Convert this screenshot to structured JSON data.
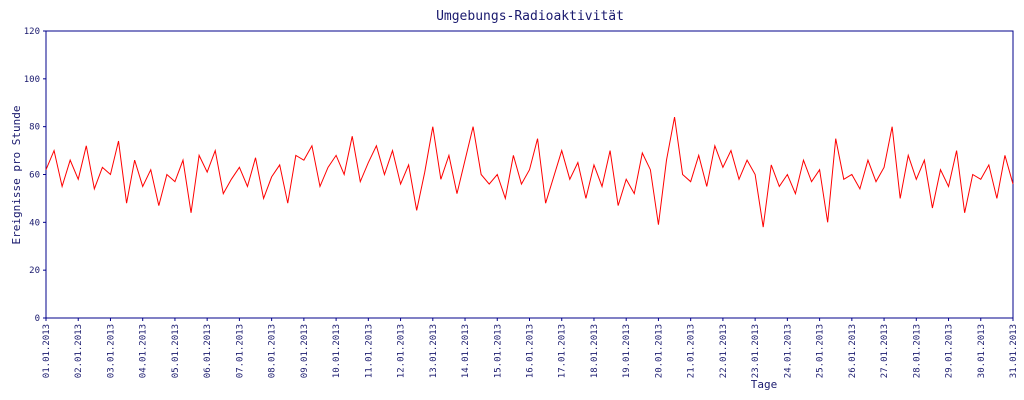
{
  "chart_data": {
    "type": "line",
    "title": "Umgebungs-Radioaktivität",
    "x_label": "Tage",
    "y_label": "Ereignisse pro Stunde",
    "x": [
      0,
      0.25,
      0.5,
      0.75,
      1,
      1.25,
      1.5,
      1.75,
      2,
      2.25,
      2.5,
      2.75,
      3,
      3.25,
      3.5,
      3.75,
      4,
      4.25,
      4.5,
      4.75,
      5,
      5.25,
      5.5,
      5.75,
      6,
      6.25,
      6.5,
      6.75,
      7,
      7.25,
      7.5,
      7.75,
      8,
      8.25,
      8.5,
      8.75,
      9,
      9.25,
      9.5,
      9.75,
      10,
      10.25,
      10.5,
      10.75,
      11,
      11.25,
      11.5,
      11.75,
      12,
      12.25,
      12.5,
      12.75,
      13,
      13.25,
      13.5,
      13.75,
      14,
      14.25,
      14.5,
      14.75,
      15,
      15.25,
      15.5,
      15.75,
      16,
      16.25,
      16.5,
      16.75,
      17,
      17.25,
      17.5,
      17.75,
      18,
      18.25,
      18.5,
      18.75,
      19,
      19.25,
      19.5,
      19.75,
      20,
      20.25,
      20.5,
      20.75,
      21,
      21.25,
      21.5,
      21.75,
      22,
      22.25,
      22.5,
      22.75,
      23,
      23.25,
      23.5,
      23.75,
      24,
      24.25,
      24.5,
      24.75,
      25,
      25.25,
      25.5,
      25.75,
      26,
      26.25,
      26.5,
      26.75,
      27,
      27.25,
      27.5,
      27.75,
      28,
      28.25,
      28.5,
      28.75,
      29,
      29.25,
      29.5,
      29.75,
      30
    ],
    "series": [
      {
        "name": "Ereignisse",
        "color": "#ff0000",
        "values": [
          62,
          70,
          55,
          66,
          58,
          72,
          54,
          63,
          60,
          74,
          48,
          66,
          55,
          62,
          47,
          60,
          57,
          66,
          44,
          68,
          61,
          70,
          52,
          58,
          63,
          55,
          67,
          50,
          59,
          64,
          48,
          68,
          66,
          72,
          55,
          63,
          68,
          60,
          76,
          57,
          65,
          72,
          60,
          70,
          56,
          64,
          45,
          61,
          80,
          58,
          68,
          52,
          66,
          80,
          60,
          56,
          60,
          50,
          68,
          56,
          62,
          75,
          48,
          59,
          70,
          58,
          65,
          50,
          64,
          55,
          70,
          47,
          58,
          52,
          69,
          62,
          39,
          66,
          84,
          60,
          57,
          68,
          55,
          72,
          63,
          70,
          58,
          66,
          60,
          38,
          64,
          55,
          60,
          52,
          66,
          57,
          62,
          40,
          75,
          58,
          60,
          54,
          66,
          57,
          63,
          80,
          50,
          68,
          58,
          66,
          46,
          62,
          55,
          70,
          44,
          60,
          58,
          64,
          50,
          68,
          56
        ]
      }
    ],
    "xlim": [
      0,
      30
    ],
    "xticks": [
      {
        "value": 0,
        "label": "01.01.2013"
      },
      {
        "value": 1,
        "label": "02.01.2013"
      },
      {
        "value": 2,
        "label": "03.01.2013"
      },
      {
        "value": 3,
        "label": "04.01.2013"
      },
      {
        "value": 4,
        "label": "05.01.2013"
      },
      {
        "value": 5,
        "label": "06.01.2013"
      },
      {
        "value": 6,
        "label": "07.01.2013"
      },
      {
        "value": 7,
        "label": "08.01.2013"
      },
      {
        "value": 8,
        "label": "09.01.2013"
      },
      {
        "value": 9,
        "label": "10.01.2013"
      },
      {
        "value": 10,
        "label": "11.01.2013"
      },
      {
        "value": 11,
        "label": "12.01.2013"
      },
      {
        "value": 12,
        "label": "13.01.2013"
      },
      {
        "value": 13,
        "label": "14.01.2013"
      },
      {
        "value": 14,
        "label": "15.01.2013"
      },
      {
        "value": 15,
        "label": "16.01.2013"
      },
      {
        "value": 16,
        "label": "17.01.2013"
      },
      {
        "value": 17,
        "label": "18.01.2013"
      },
      {
        "value": 18,
        "label": "19.01.2013"
      },
      {
        "value": 19,
        "label": "20.01.2013"
      },
      {
        "value": 20,
        "label": "21.01.2013"
      },
      {
        "value": 21,
        "label": "22.01.2013"
      },
      {
        "value": 22,
        "label": "23.01.2013"
      },
      {
        "value": 23,
        "label": "24.01.2013"
      },
      {
        "value": 24,
        "label": "25.01.2013"
      },
      {
        "value": 25,
        "label": "26.01.2013"
      },
      {
        "value": 26,
        "label": "27.01.2013"
      },
      {
        "value": 27,
        "label": "28.01.2013"
      },
      {
        "value": 28,
        "label": "29.01.2013"
      },
      {
        "value": 29,
        "label": "30.01.2013"
      },
      {
        "value": 30,
        "label": "31.01.2013"
      }
    ],
    "ylim": [
      0,
      120
    ],
    "yticks": [
      0,
      20,
      40,
      60,
      80,
      100,
      120
    ],
    "grid": false
  }
}
